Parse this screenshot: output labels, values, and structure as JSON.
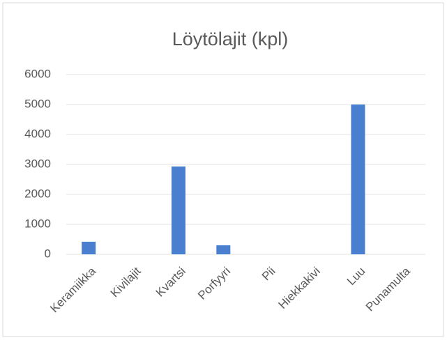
{
  "chart_data": {
    "type": "bar",
    "title": "Löytölajit (kpl)",
    "categories": [
      "Keramiikka",
      "Kivilajit",
      "Kvartsi",
      "Porfyyri",
      "Pii",
      "Hiekkakivi",
      "Luu",
      "Punamulta"
    ],
    "values": [
      420,
      0,
      2930,
      300,
      0,
      0,
      5000,
      0
    ],
    "color": "#4a7fd0",
    "ylim": [
      0,
      6000
    ],
    "yticks": [
      0,
      1000,
      2000,
      3000,
      4000,
      5000,
      6000
    ],
    "grid": true
  }
}
